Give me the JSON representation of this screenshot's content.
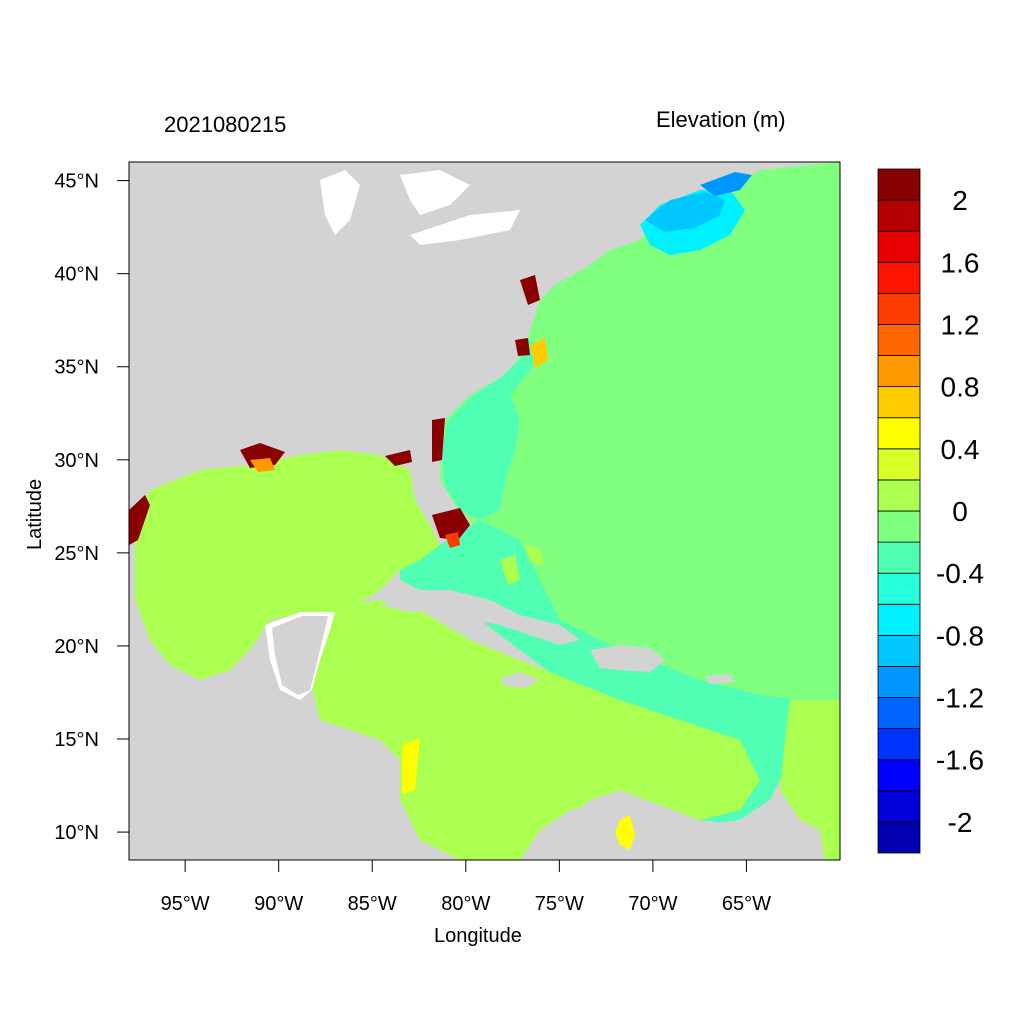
{
  "title_left": "2021080215",
  "title_right": "Elevation (m)",
  "x_axis": {
    "label": "Longitude",
    "range": [
      -98,
      -60
    ],
    "ticks": [
      {
        "value": -95,
        "label": "95°W"
      },
      {
        "value": -90,
        "label": "90°W"
      },
      {
        "value": -85,
        "label": "85°W"
      },
      {
        "value": -80,
        "label": "80°W"
      },
      {
        "value": -75,
        "label": "75°W"
      },
      {
        "value": -70,
        "label": "70°W"
      },
      {
        "value": -65,
        "label": "65°W"
      }
    ]
  },
  "y_axis": {
    "label": "Latitude",
    "range": [
      8.5,
      46
    ],
    "ticks": [
      {
        "value": 10,
        "label": "10°N"
      },
      {
        "value": 15,
        "label": "15°N"
      },
      {
        "value": 20,
        "label": "20°N"
      },
      {
        "value": 25,
        "label": "25°N"
      },
      {
        "value": 30,
        "label": "30°N"
      },
      {
        "value": 35,
        "label": "35°N"
      },
      {
        "value": 40,
        "label": "40°N"
      },
      {
        "value": 45,
        "label": "45°N"
      }
    ]
  },
  "colorbar": {
    "colors": [
      "#0000b0",
      "#0000d8",
      "#0000ff",
      "#0032ff",
      "#0064ff",
      "#0096ff",
      "#00c8ff",
      "#00f0ff",
      "#28ffdc",
      "#50ffb4",
      "#80ff80",
      "#aaff50",
      "#d8ff28",
      "#ffff00",
      "#ffcc00",
      "#ff9900",
      "#ff6600",
      "#ff3c00",
      "#ff1400",
      "#e60000",
      "#b40000",
      "#880000"
    ],
    "labels": [
      {
        "value": -2,
        "label": "-2"
      },
      {
        "value": -1.6,
        "label": "-1.6"
      },
      {
        "value": -1.2,
        "label": "-1.2"
      },
      {
        "value": -0.8,
        "label": "-0.8"
      },
      {
        "value": -0.4,
        "label": "-0.4"
      },
      {
        "value": 0,
        "label": "0"
      },
      {
        "value": 0.4,
        "label": "0.4"
      },
      {
        "value": 0.8,
        "label": "0.8"
      },
      {
        "value": 1.2,
        "label": "1.2"
      },
      {
        "value": 1.6,
        "label": "1.6"
      },
      {
        "value": 2,
        "label": "2"
      }
    ]
  },
  "colors": {
    "land": "#d3d3d3",
    "atlantic": "#80ff80",
    "gulf_caribbean": "#aaff50",
    "shelf": "#50ffb4",
    "gulf_of_maine": "#00c8ff",
    "storm_surge": "#880000"
  }
}
